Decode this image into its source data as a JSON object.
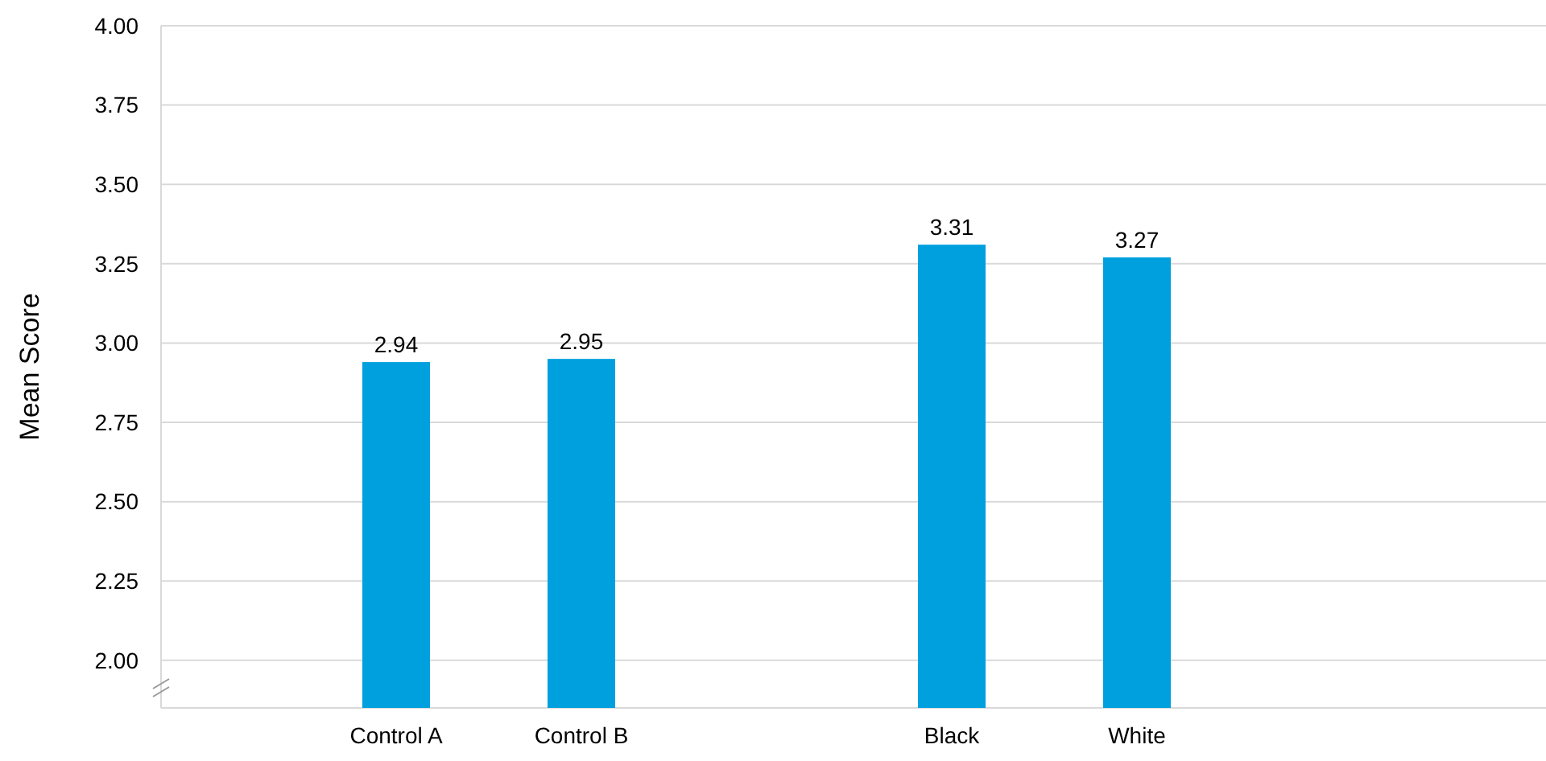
{
  "chart_data": {
    "type": "bar",
    "ylabel": "Mean Score",
    "categories": [
      "Control A",
      "Control B",
      null,
      "Black",
      "White"
    ],
    "values": [
      2.94,
      2.95,
      null,
      3.31,
      3.27
    ],
    "color": "#00a0df",
    "ylim": [
      1.85,
      4.0
    ],
    "yticks": [
      {
        "value": 2.0,
        "label": "2.00"
      },
      {
        "value": 2.25,
        "label": "2.25"
      },
      {
        "value": 2.5,
        "label": "2.50"
      },
      {
        "value": 2.75,
        "label": "2.75"
      },
      {
        "value": 3.0,
        "label": "3.00"
      },
      {
        "value": 3.25,
        "label": "3.25"
      },
      {
        "value": 3.5,
        "label": "3.50"
      },
      {
        "value": 3.75,
        "label": "3.75"
      },
      {
        "value": 4.0,
        "label": "4.00"
      }
    ],
    "grid": "y",
    "data_labels": true
  }
}
